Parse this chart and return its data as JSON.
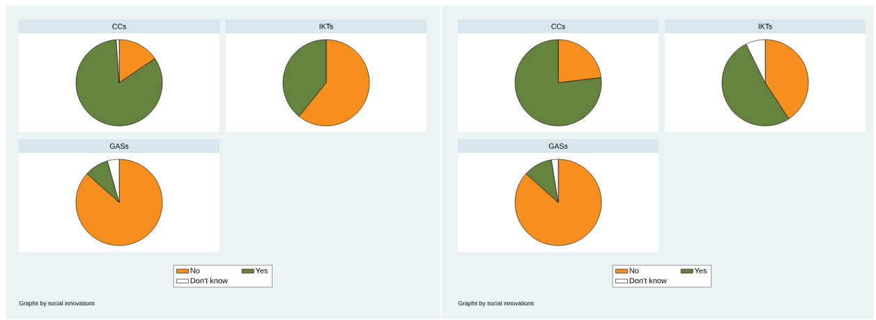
{
  "chart_data": [
    {
      "type": "pie",
      "title": "CCs",
      "categories": [
        null,
        null,
        null
      ],
      "values": [
        15.5,
        83.4,
        1.1
      ],
      "colors": [
        "#f78f1e",
        "#66823f",
        "#ffffff"
      ]
    },
    {
      "type": "pie",
      "title": "IKTs",
      "categories": [
        null,
        null,
        null
      ],
      "values": [
        60.8,
        39.2,
        0
      ],
      "colors": [
        "#f78f1e",
        "#66823f",
        "#ffffff"
      ]
    },
    {
      "type": "pie",
      "title": "GASs",
      "categories": [
        "No",
        "Yes",
        "Don't know"
      ],
      "values": [
        86.6,
        9.0,
        4.4
      ],
      "colors": [
        "#f78f1e",
        "#66823f",
        "#ffffff"
      ],
      "legend": "bottom",
      "annotations": [
        "Graphs by social innovations"
      ]
    },
    {
      "type": "pie",
      "title": "CCs",
      "categories": [
        null,
        null,
        null
      ],
      "values": [
        23.1,
        76.9,
        0
      ],
      "colors": [
        "#f78f1e",
        "#66823f",
        "#ffffff"
      ]
    },
    {
      "type": "pie",
      "title": "IKTs",
      "categories": [
        null,
        null,
        null
      ],
      "values": [
        40.8,
        51.9,
        7.3
      ],
      "colors": [
        "#f78f1e",
        "#66823f",
        "#ffffff"
      ]
    },
    {
      "type": "pie",
      "title": "GASs",
      "categories": [
        "No",
        "Yes",
        "Don't know"
      ],
      "values": [
        86.6,
        10.9,
        2.5
      ],
      "colors": [
        "#f78f1e",
        "#66823f",
        "#ffffff"
      ],
      "legend": "bottom",
      "annotations": [
        "Graphs by social innovations"
      ]
    }
  ]
}
